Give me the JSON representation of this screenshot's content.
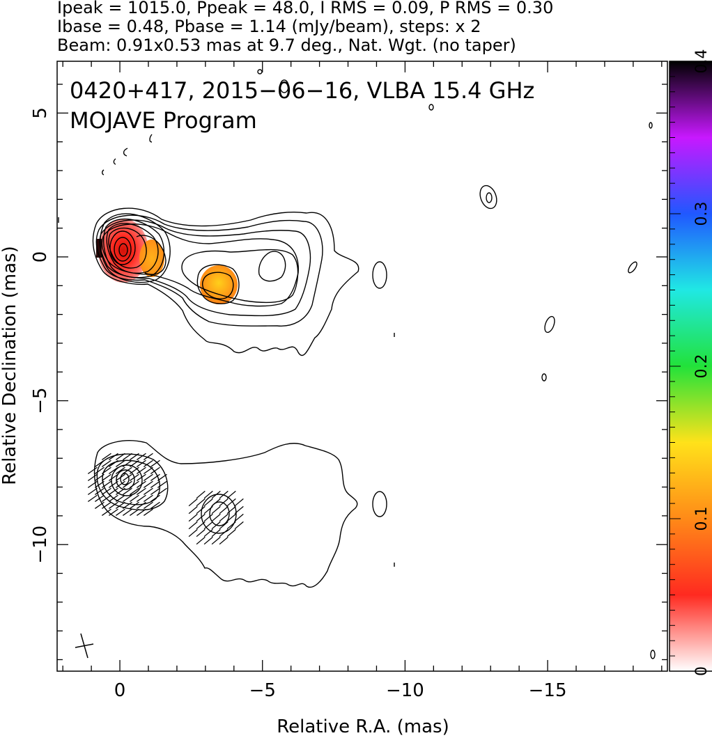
{
  "chart_data": {
    "type": "heatmap",
    "header_lines": [
      "Ipeak = 1015.0, Ppeak = 48.0, I RMS = 0.09, P RMS = 0.30",
      "Ibase = 0.48, Pbase = 1.14 (mJy/beam), steps: x 2",
      "Beam: 0.91x0.53 mas at 9.7 deg., Nat. Wgt. (no taper)"
    ],
    "title_lines": [
      "0420+417, 2015−06−16, VLBA 15.4 GHz",
      "MOJAVE Program"
    ],
    "xlabel": "Relative R.A. (mas)",
    "ylabel": "Relative Declination (mas)",
    "xlim": [
      2.2,
      -19.2
    ],
    "ylim": [
      -14.4,
      6.8
    ],
    "x_ticks": [
      0,
      -5,
      -10,
      -15
    ],
    "x_tick_labels": [
      "0",
      "−5",
      "−10",
      "−15"
    ],
    "y_ticks": [
      5,
      0,
      -5,
      -10
    ],
    "y_tick_labels": [
      "5",
      "0",
      "−5",
      "−10"
    ],
    "colorbar": {
      "range": [
        0,
        0.4
      ],
      "ticks": [
        0,
        0.1,
        0.2,
        0.3,
        0.4
      ],
      "tick_labels": [
        "0",
        "0.1",
        "0.2",
        "0.3",
        "0.4"
      ],
      "colors": [
        "#ffffff",
        "#ff2a20",
        "#ff8a18",
        "#ffe21a",
        "#22e23a",
        "#20e8e4",
        "#2058ff",
        "#c818ff",
        "#000000"
      ]
    },
    "intensity_contours": {
      "peak_mjy_per_beam": 1015.0,
      "base_mjy_per_beam": 0.48,
      "step_factor": 2,
      "core_center_mas": [
        -0.1,
        0.2
      ],
      "jet_knot_mas": [
        -3.4,
        -1.1
      ],
      "extended_lobe_extent_mas": {
        "ra": [
          0.8,
          -7.9
        ],
        "dec": [
          1.5,
          -3.6
        ]
      }
    },
    "polarization_panel": {
      "offset_dec_mas": -8.0,
      "core_center_mas": [
        -0.2,
        -7.9
      ],
      "knot_center_mas": [
        -3.3,
        -9.0
      ]
    },
    "beam": {
      "major_mas": 0.91,
      "minor_mas": 0.53,
      "pa_deg": 9.7
    },
    "fractional_polarization_pixels": [
      {
        "ra": -0.1,
        "dec": 0.2,
        "value": 0.05
      },
      {
        "ra": -1.2,
        "dec": 0.0,
        "value": 0.1
      },
      {
        "ra": -3.4,
        "dec": -1.1,
        "value": 0.12
      }
    ]
  }
}
